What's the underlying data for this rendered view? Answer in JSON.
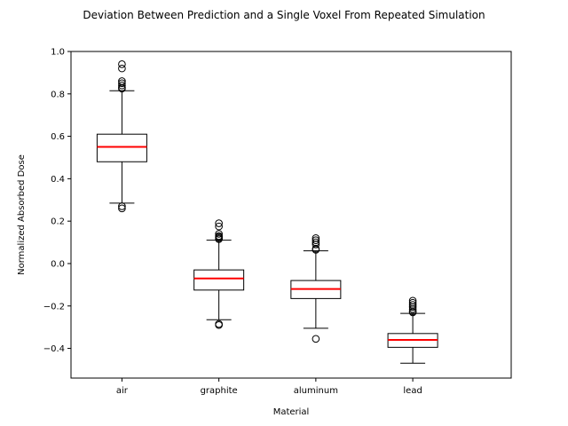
{
  "chart_data": {
    "type": "boxplot",
    "title": "Deviation Between Prediction and a Single Voxel From Repeated Simulation",
    "xlabel": "Material",
    "ylabel": "Normalized Absorbed Dose",
    "ylim": [
      -0.54,
      1.0
    ],
    "yticks": [
      -0.4,
      -0.2,
      0.0,
      0.2,
      0.4,
      0.6,
      0.8,
      1.0
    ],
    "ytick_labels": [
      "−0.4",
      "−0.2",
      "0.0",
      "0.2",
      "0.4",
      "0.6",
      "0.8",
      "1.0"
    ],
    "categories": [
      "air",
      "graphite",
      "aluminum",
      "lead"
    ],
    "boxes": [
      {
        "category": "air",
        "q1": 0.48,
        "median": 0.55,
        "q3": 0.61,
        "whisker_low": 0.285,
        "whisker_high": 0.815,
        "outliers": [
          0.94,
          0.92,
          0.86,
          0.85,
          0.84,
          0.83,
          0.825,
          0.27,
          0.26
        ]
      },
      {
        "category": "graphite",
        "q1": -0.125,
        "median": -0.07,
        "q3": -0.03,
        "whisker_low": -0.265,
        "whisker_high": 0.11,
        "outliers": [
          0.19,
          0.175,
          0.14,
          0.13,
          0.125,
          0.12,
          0.115,
          -0.285,
          -0.29
        ]
      },
      {
        "category": "aluminum",
        "q1": -0.165,
        "median": -0.12,
        "q3": -0.08,
        "whisker_low": -0.305,
        "whisker_high": 0.06,
        "outliers": [
          0.12,
          0.11,
          0.1,
          0.09,
          0.07,
          0.065,
          -0.355
        ]
      },
      {
        "category": "lead",
        "q1": -0.395,
        "median": -0.36,
        "q3": -0.33,
        "whisker_low": -0.47,
        "whisker_high": -0.235,
        "outliers": [
          -0.175,
          -0.185,
          -0.195,
          -0.205,
          -0.215,
          -0.225,
          -0.23
        ]
      }
    ],
    "median_color": "#ff0000",
    "box_color": "#000000",
    "grid": false
  }
}
